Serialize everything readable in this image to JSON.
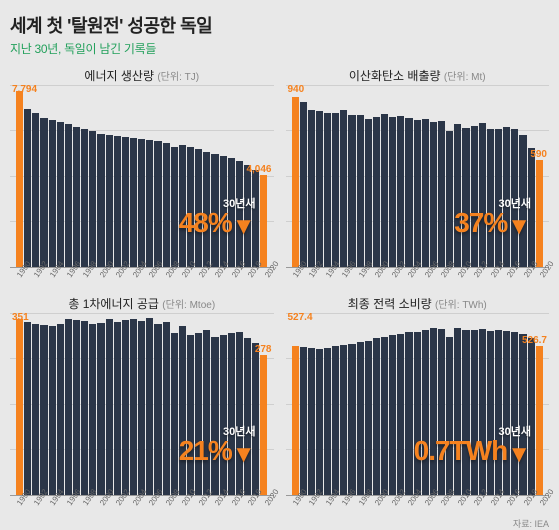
{
  "title": "세계 첫 '탈원전' 성공한 독일",
  "subtitle": "지난 30년, 독일이 남긴 기록들",
  "source": "자료: IEA",
  "colors": {
    "bar": "#2b3648",
    "highlight": "#f5821f",
    "grid": "#cfcfcf",
    "bg": "#e8e8e8",
    "subtitle": "#22a05b"
  },
  "years": [
    1990,
    1991,
    1992,
    1993,
    1994,
    1995,
    1996,
    1997,
    1998,
    1999,
    2000,
    2001,
    2002,
    2003,
    2004,
    2005,
    2006,
    2007,
    2008,
    2009,
    2010,
    2011,
    2012,
    2013,
    2014,
    2015,
    2016,
    2017,
    2018,
    2019,
    2020
  ],
  "xtick_years": [
    1990,
    1992,
    1994,
    1996,
    1998,
    2000,
    2002,
    2004,
    2006,
    2008,
    2010,
    2012,
    2014,
    2016,
    2018,
    2020
  ],
  "panels": [
    {
      "title": "에너지 생산량",
      "unit": "(단위: TJ)",
      "first_label": "7,794",
      "last_label": "4,046",
      "change_top": "30년새",
      "change_pct": "48%",
      "ylim": [
        0,
        8000
      ],
      "gridlines": [
        0.25,
        0.5,
        0.75,
        1.0
      ],
      "values": [
        7794,
        7000,
        6800,
        6600,
        6500,
        6400,
        6300,
        6200,
        6100,
        6000,
        5900,
        5850,
        5800,
        5750,
        5700,
        5650,
        5600,
        5550,
        5500,
        5300,
        5400,
        5300,
        5200,
        5100,
        5000,
        4900,
        4800,
        4700,
        4500,
        4300,
        4046
      ]
    },
    {
      "title": "이산화탄소 배출량",
      "unit": "(단위: Mt)",
      "first_label": "940",
      "last_label": "590",
      "change_top": "30년새",
      "change_pct": "37%",
      "ylim": [
        0,
        1000
      ],
      "gridlines": [
        0.25,
        0.5,
        0.75,
        1.0
      ],
      "values": [
        940,
        910,
        870,
        860,
        850,
        850,
        870,
        840,
        840,
        820,
        830,
        845,
        830,
        835,
        825,
        810,
        820,
        800,
        805,
        750,
        790,
        770,
        780,
        795,
        760,
        765,
        775,
        765,
        730,
        660,
        590
      ]
    },
    {
      "title": "총 1차에너지 공급",
      "unit": "(단위: Mtoe)",
      "first_label": "351",
      "last_label": "278",
      "change_top": "30년새",
      "change_pct": "21%",
      "ylim": [
        0,
        360
      ],
      "gridlines": [
        0.25,
        0.5,
        0.75,
        1.0
      ],
      "values": [
        351,
        345,
        340,
        338,
        336,
        340,
        350,
        348,
        346,
        340,
        342,
        350,
        345,
        348,
        350,
        346,
        352,
        340,
        344,
        322,
        336,
        318,
        322,
        328,
        314,
        318,
        322,
        324,
        312,
        302,
        278
      ]
    },
    {
      "title": "최종 전력 소비량",
      "unit": "(단위: TWh)",
      "first_label": "527.4",
      "last_label": "526.7",
      "change_top": "30년새",
      "change_pct": "0.7TWh",
      "ylim": [
        0,
        640
      ],
      "gridlines": [
        0.25,
        0.5,
        0.75,
        1.0
      ],
      "values": [
        527.4,
        525,
        520,
        518,
        520,
        528,
        532,
        535,
        540,
        545,
        555,
        560,
        565,
        570,
        575,
        578,
        585,
        590,
        588,
        560,
        590,
        582,
        585,
        588,
        580,
        582,
        580,
        578,
        570,
        555,
        526.7
      ]
    }
  ]
}
